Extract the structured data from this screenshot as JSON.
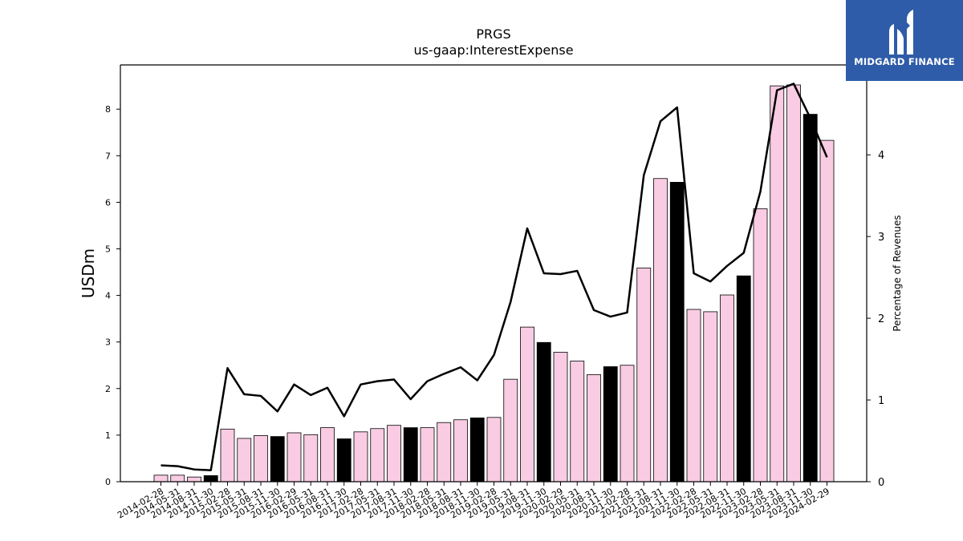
{
  "logo": {
    "text": "MIDGARD FINANCE",
    "background": "#2f5ca8"
  },
  "chart_data": {
    "type": "bar",
    "title": "PRGS",
    "subtitle": "us-gaap:InterestExpense",
    "ylabel": "USDm",
    "y2label": "Percentage of Revenues",
    "ylim": [
      0,
      8.95
    ],
    "y2lim": [
      0,
      5.1
    ],
    "yticks": [
      0,
      1,
      2,
      3,
      4,
      5,
      6,
      7,
      8
    ],
    "y2ticks": [
      0,
      1,
      2,
      3,
      4
    ],
    "grid": false,
    "bar_colors": {
      "default": "#f9cce3",
      "highlight": "#000000"
    },
    "line_color": "#000000",
    "categories": [
      "2014-02-28",
      "2014-05-31",
      "2014-08-31",
      "2014-11-30",
      "2015-02-28",
      "2015-05-31",
      "2015-08-31",
      "2015-11-30",
      "2016-02-29",
      "2016-05-31",
      "2016-08-31",
      "2016-11-30",
      "2017-02-28",
      "2017-05-31",
      "2017-08-31",
      "2017-11-30",
      "2018-02-28",
      "2018-05-31",
      "2018-08-31",
      "2018-11-30",
      "2019-02-28",
      "2019-05-31",
      "2019-08-31",
      "2019-11-30",
      "2020-02-29",
      "2020-05-31",
      "2020-08-31",
      "2020-11-30",
      "2021-02-28",
      "2021-05-31",
      "2021-08-31",
      "2021-11-30",
      "2022-02-28",
      "2022-05-31",
      "2022-08-31",
      "2022-11-30",
      "2023-02-28",
      "2023-05-31",
      "2023-08-31",
      "2023-11-30",
      "2024-02-29"
    ],
    "series": [
      {
        "type": "bar",
        "axis": "left",
        "values": [
          0.14,
          0.14,
          0.1,
          0.13,
          1.13,
          0.93,
          0.99,
          0.97,
          1.05,
          1.01,
          1.16,
          0.92,
          1.07,
          1.14,
          1.21,
          1.16,
          1.16,
          1.27,
          1.33,
          1.37,
          1.38,
          2.2,
          3.32,
          2.99,
          2.78,
          2.59,
          2.3,
          2.47,
          2.5,
          4.59,
          6.51,
          6.43,
          3.7,
          3.65,
          4.01,
          4.42,
          5.86,
          8.5,
          8.52,
          7.89,
          7.33
        ],
        "highlight": [
          false,
          false,
          false,
          true,
          false,
          false,
          false,
          true,
          false,
          false,
          false,
          true,
          false,
          false,
          false,
          true,
          false,
          false,
          false,
          true,
          false,
          false,
          false,
          true,
          false,
          false,
          false,
          true,
          false,
          false,
          false,
          true,
          false,
          false,
          false,
          true,
          false,
          false,
          false,
          true,
          false
        ]
      },
      {
        "type": "line",
        "axis": "right",
        "values": [
          0.2,
          0.19,
          0.15,
          0.14,
          1.39,
          1.07,
          1.05,
          0.86,
          1.19,
          1.06,
          1.15,
          0.8,
          1.19,
          1.23,
          1.25,
          1.01,
          1.23,
          1.32,
          1.4,
          1.24,
          1.55,
          2.2,
          3.1,
          2.55,
          2.54,
          2.58,
          2.1,
          2.02,
          2.07,
          3.75,
          4.41,
          4.58,
          2.55,
          2.45,
          2.64,
          2.8,
          3.55,
          4.79,
          4.87,
          4.45,
          3.97
        ]
      }
    ]
  }
}
